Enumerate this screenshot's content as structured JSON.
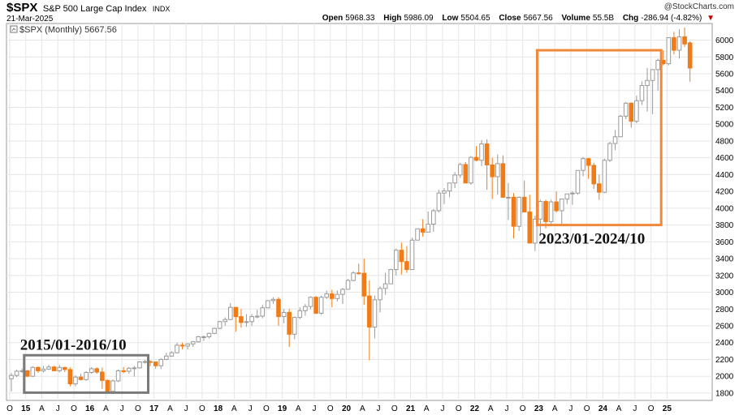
{
  "header": {
    "symbol": "$SPX",
    "name": "S&P 500 Large Cap Index",
    "exchange": "INDX",
    "date": "21-Mar-2025",
    "watermark": "@StockCharts.com",
    "legend": "$SPX (Monthly) 5667.56",
    "stats": {
      "open_label": "Open",
      "open": "5968.33",
      "high_label": "High",
      "high": "5986.09",
      "low_label": "Low",
      "low": "5504.65",
      "close_label": "Close",
      "close": "5667.56",
      "volume_label": "Volume",
      "volume": "55.5B",
      "chg_label": "Chg",
      "chg": "-286.94 (-4.82%)",
      "chg_icon": "down-triangle-icon"
    }
  },
  "colors": {
    "up": "#9a9a9a",
    "down": "#f07b17",
    "highlight_recent": "#f0883a",
    "highlight_early": "#7a7a7a",
    "grid": "#e6e6e6"
  },
  "chart_data": {
    "type": "candlestick",
    "interval": "monthly",
    "ylim": [
      1780,
      6150
    ],
    "y_ticks": [
      1800,
      2000,
      2200,
      2400,
      2600,
      2800,
      3000,
      3200,
      3400,
      3600,
      3800,
      4000,
      4200,
      4400,
      4600,
      4800,
      5000,
      5200,
      5400,
      5600,
      5800,
      6000
    ],
    "x_ticks": [
      "O",
      "15",
      "A",
      "J",
      "O",
      "16",
      "A",
      "J",
      "O",
      "17",
      "A",
      "J",
      "O",
      "18",
      "A",
      "J",
      "O",
      "19",
      "A",
      "J",
      "O",
      "20",
      "A",
      "J",
      "O",
      "21",
      "A",
      "J",
      "O",
      "22",
      "A",
      "J",
      "O",
      "23",
      "A",
      "J",
      "O",
      "24",
      "A",
      "J",
      "O",
      "25"
    ],
    "bold_tick_labels": [
      "15",
      "16",
      "17",
      "18",
      "19",
      "20",
      "21",
      "22",
      "23",
      "24",
      "25"
    ],
    "candles": [
      {
        "o": 1970,
        "h": 2040,
        "l": 1820,
        "c": 2010
      },
      {
        "o": 2010,
        "h": 2080,
        "l": 1990,
        "c": 2060
      },
      {
        "o": 2060,
        "h": 2090,
        "l": 2040,
        "c": 2065
      },
      {
        "o": 2065,
        "h": 2075,
        "l": 1990,
        "c": 2000
      },
      {
        "o": 2000,
        "h": 2120,
        "l": 1990,
        "c": 2105
      },
      {
        "o": 2105,
        "h": 2115,
        "l": 2040,
        "c": 2065
      },
      {
        "o": 2065,
        "h": 2125,
        "l": 2045,
        "c": 2085
      },
      {
        "o": 2085,
        "h": 2135,
        "l": 2075,
        "c": 2110
      },
      {
        "o": 2110,
        "h": 2125,
        "l": 2060,
        "c": 2065
      },
      {
        "o": 2065,
        "h": 2135,
        "l": 2045,
        "c": 2105
      },
      {
        "o": 2105,
        "h": 2110,
        "l": 2050,
        "c": 2080
      },
      {
        "o": 2080,
        "h": 2105,
        "l": 1880,
        "c": 1910
      },
      {
        "o": 1910,
        "h": 2010,
        "l": 1880,
        "c": 1990
      },
      {
        "o": 1990,
        "h": 2030,
        "l": 1950,
        "c": 1960
      },
      {
        "o": 1960,
        "h": 2060,
        "l": 1945,
        "c": 2045
      },
      {
        "o": 2045,
        "h": 2110,
        "l": 2030,
        "c": 2090
      },
      {
        "o": 2090,
        "h": 2105,
        "l": 2030,
        "c": 2050
      },
      {
        "o": 2050,
        "h": 2105,
        "l": 1850,
        "c": 1950
      },
      {
        "o": 1950,
        "h": 1960,
        "l": 1800,
        "c": 1820
      },
      {
        "o": 1820,
        "h": 1960,
        "l": 1810,
        "c": 1945
      },
      {
        "o": 1945,
        "h": 2080,
        "l": 1930,
        "c": 2065
      },
      {
        "o": 2065,
        "h": 2110,
        "l": 2035,
        "c": 2060
      },
      {
        "o": 2060,
        "h": 2110,
        "l": 2030,
        "c": 2095
      },
      {
        "o": 2095,
        "h": 2125,
        "l": 1995,
        "c": 2100
      },
      {
        "o": 2100,
        "h": 2180,
        "l": 2090,
        "c": 2170
      },
      {
        "o": 2170,
        "h": 2195,
        "l": 2150,
        "c": 2175
      },
      {
        "o": 2175,
        "h": 2190,
        "l": 2120,
        "c": 2170
      },
      {
        "o": 2170,
        "h": 2175,
        "l": 2090,
        "c": 2125
      },
      {
        "o": 2125,
        "h": 2215,
        "l": 2085,
        "c": 2200
      },
      {
        "o": 2200,
        "h": 2280,
        "l": 2190,
        "c": 2240
      },
      {
        "o": 2240,
        "h": 2300,
        "l": 2230,
        "c": 2280
      },
      {
        "o": 2280,
        "h": 2400,
        "l": 2270,
        "c": 2370
      },
      {
        "o": 2370,
        "h": 2400,
        "l": 2320,
        "c": 2360
      },
      {
        "o": 2360,
        "h": 2390,
        "l": 2320,
        "c": 2385
      },
      {
        "o": 2385,
        "h": 2420,
        "l": 2350,
        "c": 2410
      },
      {
        "o": 2410,
        "h": 2480,
        "l": 2400,
        "c": 2470
      },
      {
        "o": 2470,
        "h": 2485,
        "l": 2420,
        "c": 2470
      },
      {
        "o": 2470,
        "h": 2520,
        "l": 2450,
        "c": 2510
      },
      {
        "o": 2510,
        "h": 2580,
        "l": 2500,
        "c": 2570
      },
      {
        "o": 2570,
        "h": 2660,
        "l": 2560,
        "c": 2650
      },
      {
        "o": 2650,
        "h": 2700,
        "l": 2600,
        "c": 2675
      },
      {
        "o": 2675,
        "h": 2870,
        "l": 2670,
        "c": 2820
      },
      {
        "o": 2820,
        "h": 2790,
        "l": 2530,
        "c": 2710
      },
      {
        "o": 2710,
        "h": 2800,
        "l": 2580,
        "c": 2640
      },
      {
        "o": 2640,
        "h": 2740,
        "l": 2590,
        "c": 2650
      },
      {
        "o": 2650,
        "h": 2740,
        "l": 2600,
        "c": 2710
      },
      {
        "o": 2710,
        "h": 2790,
        "l": 2690,
        "c": 2715
      },
      {
        "o": 2715,
        "h": 2850,
        "l": 2690,
        "c": 2815
      },
      {
        "o": 2815,
        "h": 2880,
        "l": 2810,
        "c": 2900
      },
      {
        "o": 2900,
        "h": 2940,
        "l": 2860,
        "c": 2915
      },
      {
        "o": 2915,
        "h": 2940,
        "l": 2600,
        "c": 2710
      },
      {
        "o": 2710,
        "h": 2800,
        "l": 2630,
        "c": 2760
      },
      {
        "o": 2760,
        "h": 2800,
        "l": 2350,
        "c": 2500
      },
      {
        "o": 2500,
        "h": 2710,
        "l": 2440,
        "c": 2700
      },
      {
        "o": 2700,
        "h": 2820,
        "l": 2680,
        "c": 2780
      },
      {
        "o": 2780,
        "h": 2860,
        "l": 2720,
        "c": 2830
      },
      {
        "o": 2830,
        "h": 2950,
        "l": 2800,
        "c": 2940
      },
      {
        "o": 2940,
        "h": 2955,
        "l": 2740,
        "c": 2750
      },
      {
        "o": 2750,
        "h": 2960,
        "l": 2730,
        "c": 2940
      },
      {
        "o": 2940,
        "h": 3020,
        "l": 2920,
        "c": 2980
      },
      {
        "o": 2980,
        "h": 3030,
        "l": 2820,
        "c": 2925
      },
      {
        "o": 2925,
        "h": 3020,
        "l": 2890,
        "c": 2975
      },
      {
        "o": 2975,
        "h": 3050,
        "l": 2860,
        "c": 3035
      },
      {
        "o": 3035,
        "h": 3160,
        "l": 3030,
        "c": 3140
      },
      {
        "o": 3140,
        "h": 3250,
        "l": 3130,
        "c": 3230
      },
      {
        "o": 3230,
        "h": 3340,
        "l": 3210,
        "c": 3225
      },
      {
        "o": 3225,
        "h": 3400,
        "l": 2850,
        "c": 2955
      },
      {
        "o": 2955,
        "h": 3140,
        "l": 2190,
        "c": 2585
      },
      {
        "o": 2585,
        "h": 2960,
        "l": 2450,
        "c": 2910
      },
      {
        "o": 2910,
        "h": 3070,
        "l": 2760,
        "c": 3045
      },
      {
        "o": 3045,
        "h": 3230,
        "l": 2970,
        "c": 3100
      },
      {
        "o": 3100,
        "h": 3280,
        "l": 3100,
        "c": 3270
      },
      {
        "o": 3270,
        "h": 3520,
        "l": 3200,
        "c": 3500
      },
      {
        "o": 3500,
        "h": 3590,
        "l": 3210,
        "c": 3365
      },
      {
        "o": 3365,
        "h": 3550,
        "l": 3230,
        "c": 3270
      },
      {
        "o": 3270,
        "h": 3650,
        "l": 3280,
        "c": 3620
      },
      {
        "o": 3620,
        "h": 3760,
        "l": 3630,
        "c": 3755
      },
      {
        "o": 3755,
        "h": 3870,
        "l": 3660,
        "c": 3715
      },
      {
        "o": 3715,
        "h": 3960,
        "l": 3720,
        "c": 3810
      },
      {
        "o": 3810,
        "h": 3990,
        "l": 3720,
        "c": 3970
      },
      {
        "o": 3970,
        "h": 4220,
        "l": 3950,
        "c": 4180
      },
      {
        "o": 4180,
        "h": 4240,
        "l": 4050,
        "c": 4205
      },
      {
        "o": 4205,
        "h": 4300,
        "l": 4130,
        "c": 4300
      },
      {
        "o": 4300,
        "h": 4430,
        "l": 4240,
        "c": 4395
      },
      {
        "o": 4395,
        "h": 4540,
        "l": 4360,
        "c": 4520
      },
      {
        "o": 4520,
        "h": 4550,
        "l": 4300,
        "c": 4300
      },
      {
        "o": 4300,
        "h": 4620,
        "l": 4280,
        "c": 4605
      },
      {
        "o": 4605,
        "h": 4740,
        "l": 4560,
        "c": 4570
      },
      {
        "o": 4570,
        "h": 4810,
        "l": 4500,
        "c": 4765
      },
      {
        "o": 4765,
        "h": 4820,
        "l": 4220,
        "c": 4515
      },
      {
        "o": 4515,
        "h": 4600,
        "l": 4110,
        "c": 4375
      },
      {
        "o": 4375,
        "h": 4640,
        "l": 4160,
        "c": 4530
      },
      {
        "o": 4530,
        "h": 4630,
        "l": 4140,
        "c": 4130
      },
      {
        "o": 4130,
        "h": 4300,
        "l": 3860,
        "c": 4130
      },
      {
        "o": 4130,
        "h": 4180,
        "l": 3640,
        "c": 3785
      },
      {
        "o": 3785,
        "h": 4140,
        "l": 3730,
        "c": 4130
      },
      {
        "o": 4130,
        "h": 4330,
        "l": 3960,
        "c": 3955
      },
      {
        "o": 3955,
        "h": 4160,
        "l": 3585,
        "c": 3585
      },
      {
        "o": 3585,
        "h": 3910,
        "l": 3490,
        "c": 3870
      },
      {
        "o": 3870,
        "h": 4100,
        "l": 3700,
        "c": 4080
      },
      {
        "o": 4080,
        "h": 4100,
        "l": 3760,
        "c": 3840
      },
      {
        "o": 3840,
        "h": 4100,
        "l": 3800,
        "c": 4075
      },
      {
        "o": 4075,
        "h": 4200,
        "l": 3950,
        "c": 3970
      },
      {
        "o": 3970,
        "h": 4110,
        "l": 3800,
        "c": 4110
      },
      {
        "o": 4110,
        "h": 4170,
        "l": 4050,
        "c": 4170
      },
      {
        "o": 4170,
        "h": 4200,
        "l": 4040,
        "c": 4180
      },
      {
        "o": 4180,
        "h": 4450,
        "l": 4160,
        "c": 4450
      },
      {
        "o": 4450,
        "h": 4610,
        "l": 4380,
        "c": 4590
      },
      {
        "o": 4590,
        "h": 4600,
        "l": 4350,
        "c": 4510
      },
      {
        "o": 4510,
        "h": 4540,
        "l": 4230,
        "c": 4290
      },
      {
        "o": 4290,
        "h": 4400,
        "l": 4100,
        "c": 4190
      },
      {
        "o": 4190,
        "h": 4590,
        "l": 4180,
        "c": 4570
      },
      {
        "o": 4570,
        "h": 4790,
        "l": 4550,
        "c": 4770
      },
      {
        "o": 4770,
        "h": 4930,
        "l": 4690,
        "c": 4850
      },
      {
        "o": 4850,
        "h": 5110,
        "l": 4850,
        "c": 5095
      },
      {
        "o": 5095,
        "h": 5265,
        "l": 5060,
        "c": 5250
      },
      {
        "o": 5250,
        "h": 5260,
        "l": 4960,
        "c": 5035
      },
      {
        "o": 5035,
        "h": 5340,
        "l": 5010,
        "c": 5280
      },
      {
        "o": 5280,
        "h": 5510,
        "l": 5230,
        "c": 5460
      },
      {
        "o": 5460,
        "h": 5670,
        "l": 5150,
        "c": 5520
      },
      {
        "o": 5520,
        "h": 5650,
        "l": 5120,
        "c": 5650
      },
      {
        "o": 5650,
        "h": 5780,
        "l": 5400,
        "c": 5760
      },
      {
        "o": 5760,
        "h": 5880,
        "l": 5700,
        "c": 5720
      },
      {
        "o": 5720,
        "h": 6020,
        "l": 5700,
        "c": 6030
      },
      {
        "o": 6030,
        "h": 6100,
        "l": 5830,
        "c": 5880
      },
      {
        "o": 5880,
        "h": 6130,
        "l": 5780,
        "c": 6040
      },
      {
        "o": 6040,
        "h": 6150,
        "l": 5920,
        "c": 5955
      },
      {
        "o": 5968,
        "h": 5986,
        "l": 5505,
        "c": 5668
      }
    ],
    "annotations": [
      {
        "label": "2015/01-2016/10",
        "from_index": 3,
        "to_index": 25,
        "ymin": 1805,
        "ymax": 2250,
        "style": "early"
      },
      {
        "label": "2023/01-2024/10",
        "from_index": 99,
        "to_index": 121,
        "ymin": 3800,
        "ymax": 5880,
        "style": "recent"
      }
    ]
  }
}
